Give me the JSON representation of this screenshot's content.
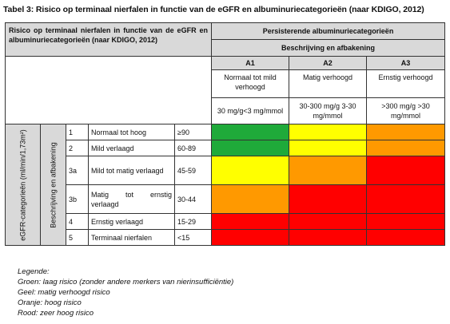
{
  "caption": "Tabel 3: Risico op terminaal nierfalen in functie van de eGFR en albuminuriecategorieën (naar KDIGO, 2012)",
  "header": {
    "left": "Risico op terminaal nierfalen in functie van de eGFR en albuminuriecategorieën (naar KDIGO, 2012)",
    "main": "Persisterende albuminuriecategorieën",
    "sub": "Beschrijving en afbakening"
  },
  "albuminuria": [
    {
      "code": "A1",
      "desc": "Normaal tot mild verhoogd",
      "range": "30 mg/g<3 mg/mmol"
    },
    {
      "code": "A2",
      "desc": "Matig verhoogd",
      "range": "30-300 mg/g 3-30 mg/mmol"
    },
    {
      "code": "A3",
      "desc": "Ernstig verhoogd",
      "range": ">300 mg/g >30 mg/mmol"
    }
  ],
  "egfr_label": "eGFR-categorieën (ml/min/1,73m²)",
  "egfr_sublabel": "Beschrijving en afbakening",
  "egfr_rows": [
    {
      "cat": "1",
      "desc": "Normaal tot hoog",
      "range": "≥90",
      "risk": [
        "green",
        "yellow",
        "orange"
      ]
    },
    {
      "cat": "2",
      "desc": "Mild verlaagd",
      "range": "60-89",
      "risk": [
        "green",
        "yellow",
        "orange"
      ]
    },
    {
      "cat": "3a",
      "desc": "Mild tot matig verlaagd",
      "range": "45-59",
      "risk": [
        "yellow",
        "orange",
        "red"
      ]
    },
    {
      "cat": "3b",
      "desc": "Matig tot ernstig verlaagd",
      "range": "30-44",
      "risk": [
        "orange",
        "red",
        "red"
      ]
    },
    {
      "cat": "4",
      "desc": "Ernstig verlaagd",
      "range": "15-29",
      "risk": [
        "red",
        "red",
        "red"
      ]
    },
    {
      "cat": "5",
      "desc": "Terminaal nierfalen",
      "range": "<15",
      "risk": [
        "red",
        "red",
        "red"
      ]
    }
  ],
  "colors": {
    "green": "#1faa3a",
    "yellow": "#ffff00",
    "orange": "#ff9900",
    "red": "#ff0000"
  },
  "legend": {
    "title": "Legende:",
    "items": [
      "Groen: laag risico (zonder andere merkers van nierinsufficiëntie)",
      "Geel: matig verhoogd risico",
      "Oranje: hoog risico",
      "Rood: zeer hoog risico"
    ]
  }
}
